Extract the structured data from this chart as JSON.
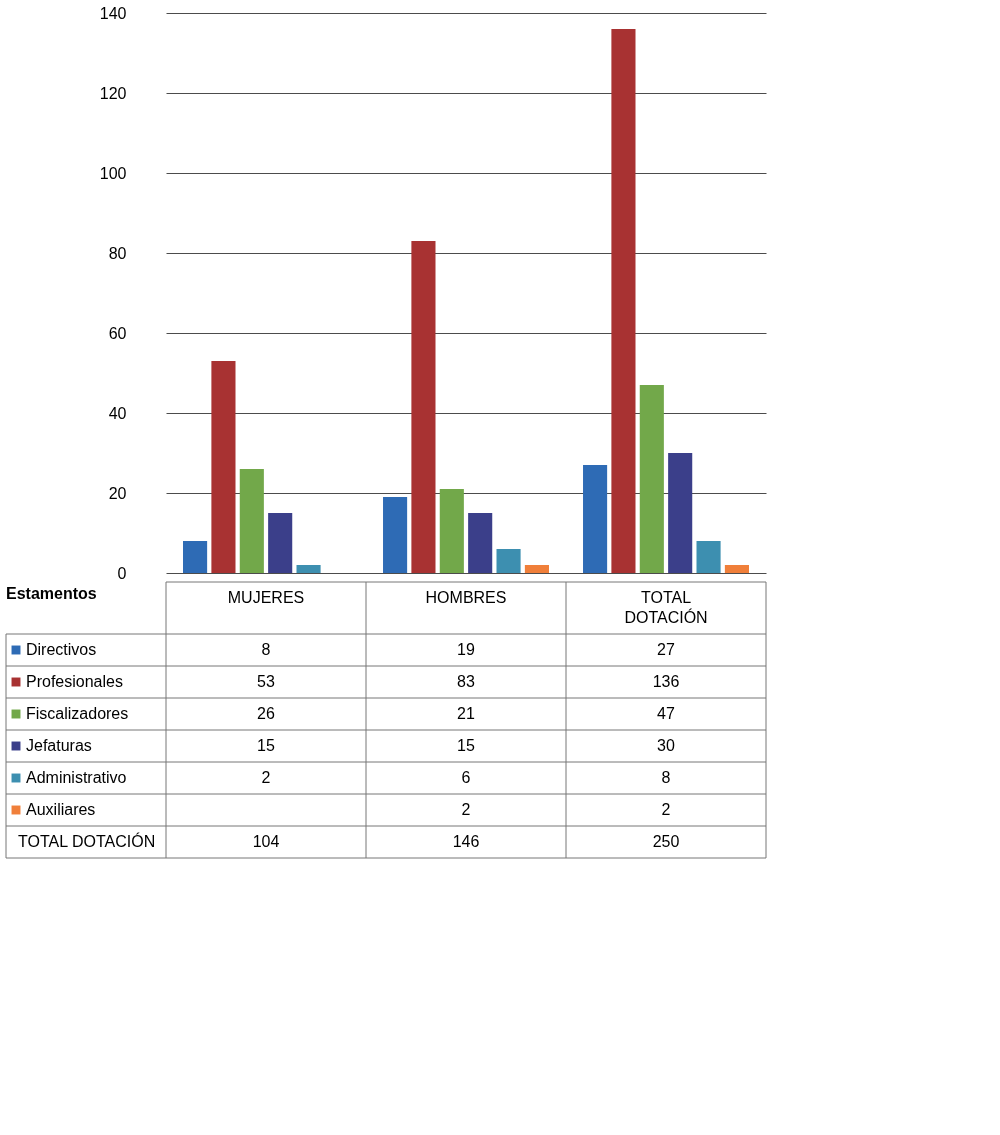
{
  "chart_data": {
    "type": "bar",
    "legend_title": "Estamentos",
    "categories": [
      "MUJERES",
      "HOMBRES",
      "TOTAL DOTACIÓN"
    ],
    "series": [
      {
        "name": "Directivos",
        "color": "#2e6bb5",
        "values": [
          8,
          19,
          27
        ]
      },
      {
        "name": "Profesionales",
        "color": "#a83232",
        "values": [
          53,
          83,
          136
        ]
      },
      {
        "name": "Fiscalizadores",
        "color": "#72a84a",
        "values": [
          26,
          21,
          47
        ]
      },
      {
        "name": "Jefaturas",
        "color": "#3b3f8a",
        "values": [
          15,
          15,
          30
        ]
      },
      {
        "name": "Administrativo",
        "color": "#3d8fb0",
        "values": [
          2,
          6,
          8
        ]
      },
      {
        "name": "Auxiliares",
        "color": "#f07f3a",
        "values": [
          null,
          2,
          2
        ]
      }
    ],
    "annotations": [
      "TOTAL DOTACIÓN",
      "104",
      "146",
      "250"
    ],
    "ylim": [
      0,
      140
    ],
    "yticks": [
      0,
      20,
      40,
      60,
      80,
      100,
      120,
      140
    ],
    "grid": "y",
    "legend": "bottom",
    "data_labels": true
  }
}
